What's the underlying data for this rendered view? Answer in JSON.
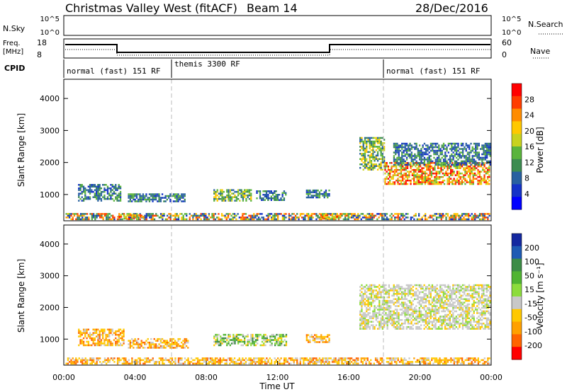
{
  "header": {
    "title": "Christmas Valley West (fitACF)",
    "beam": "Beam 14",
    "date": "28/Dec/2016"
  },
  "summary_panels": {
    "nsky": {
      "label": "N.Sky",
      "right_label": "N.Search",
      "left_ticks": [
        "10^5",
        "10^0"
      ],
      "right_ticks": [
        "10^5",
        "10^0"
      ]
    },
    "freq": {
      "label": "Freq.",
      "unit": "[MHz]",
      "left_ticks": [
        "18",
        "8"
      ],
      "right_label": "Nave",
      "right_ticks": [
        "60",
        "0"
      ]
    },
    "cpid": {
      "label": "CPID",
      "segments": [
        {
          "text": "normal (fast) 151 RF",
          "start": 0,
          "end": 6
        },
        {
          "text": "themis 3300 RF",
          "start": 6,
          "end": 18
        },
        {
          "text": "normal (fast) 151 RF",
          "start": 18,
          "end": 24
        }
      ]
    }
  },
  "chart_data": [
    {
      "type": "heatmap",
      "name": "power",
      "ylabel": "Slant Range [km]",
      "xlabel": "",
      "xlim": [
        0,
        24
      ],
      "ylim": [
        180,
        4600
      ],
      "yticks": [
        1000,
        2000,
        3000,
        4000
      ],
      "colorbar": {
        "label": "Power [dB]",
        "ticks": [
          "28",
          "24",
          "20",
          "16",
          "12",
          "8",
          "4"
        ],
        "colors": [
          "#ff0000",
          "#ff3c00",
          "#ff8c00",
          "#ffc800",
          "#c8d21e",
          "#5ab43c",
          "#3c8c50",
          "#2860a0",
          "#1432c8",
          "#0000ff"
        ]
      },
      "regions": [
        {
          "t0": 0.1,
          "t1": 23.9,
          "r0": 200,
          "r1": 420,
          "level": "mixed"
        },
        {
          "t0": 3.0,
          "t1": 4.5,
          "r0": 220,
          "r1": 360,
          "level": "high"
        },
        {
          "t0": 14.4,
          "t1": 15.4,
          "r0": 220,
          "r1": 380,
          "level": "high"
        },
        {
          "t0": 0.8,
          "t1": 3.2,
          "r0": 780,
          "r1": 1320,
          "level": "low"
        },
        {
          "t0": 3.6,
          "t1": 6.8,
          "r0": 760,
          "r1": 1000,
          "level": "low"
        },
        {
          "t0": 8.4,
          "t1": 10.5,
          "r0": 780,
          "r1": 1120,
          "level": "mid"
        },
        {
          "t0": 10.8,
          "t1": 12.5,
          "r0": 800,
          "r1": 1120,
          "level": "low"
        },
        {
          "t0": 13.6,
          "t1": 14.9,
          "r0": 880,
          "r1": 1130,
          "level": "low"
        },
        {
          "t0": 16.6,
          "t1": 18.0,
          "r0": 1750,
          "r1": 2750,
          "level": "mid"
        },
        {
          "t0": 18.0,
          "t1": 23.9,
          "r0": 1300,
          "r1": 2000,
          "level": "high"
        },
        {
          "t0": 18.5,
          "t1": 23.9,
          "r0": 1900,
          "r1": 2600,
          "level": "low"
        }
      ]
    },
    {
      "type": "heatmap",
      "name": "velocity",
      "ylabel": "Slant Range [km]",
      "xlabel": "Time UT",
      "xlim": [
        0,
        24
      ],
      "ylim": [
        180,
        4600
      ],
      "xticks": [
        "00:00",
        "04:00",
        "08:00",
        "12:00",
        "16:00",
        "20:00",
        "00:00"
      ],
      "yticks": [
        1000,
        2000,
        3000,
        4000
      ],
      "colorbar": {
        "label": "Velocity [m s⁻¹]",
        "ticks": [
          "200",
          "100",
          "50",
          "15",
          "-15",
          "-50",
          "-100",
          "-200"
        ],
        "colors": [
          "#1428a0",
          "#1e5ab4",
          "#3c8c46",
          "#50b432",
          "#8cdc3c",
          "#c8c8c8",
          "#ffc800",
          "#ffa000",
          "#ff6400",
          "#ff0000"
        ]
      },
      "regions": [
        {
          "t0": 0.1,
          "t1": 23.9,
          "r0": 200,
          "r1": 420,
          "level": "orange"
        },
        {
          "t0": 0.8,
          "t1": 3.4,
          "r0": 780,
          "r1": 1320,
          "level": "orange"
        },
        {
          "t0": 3.6,
          "t1": 7.0,
          "r0": 700,
          "r1": 1000,
          "level": "orange"
        },
        {
          "t0": 8.4,
          "t1": 12.5,
          "r0": 780,
          "r1": 1130,
          "level": "green"
        },
        {
          "t0": 13.6,
          "t1": 14.9,
          "r0": 880,
          "r1": 1130,
          "level": "orange"
        },
        {
          "t0": 16.6,
          "t1": 23.9,
          "r0": 1300,
          "r1": 2700,
          "level": "grey"
        }
      ]
    }
  ]
}
